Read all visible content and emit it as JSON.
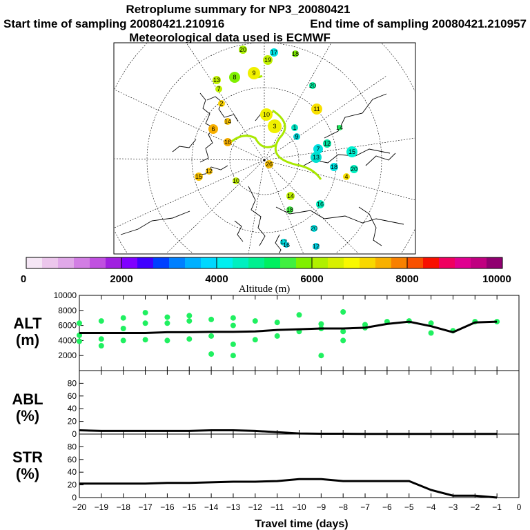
{
  "header": {
    "title": "Retroplume summary for NP3_20080421",
    "start_sampling": "Start time of sampling 20080421.210916",
    "end_sampling": "End time of sampling 20080421.210957",
    "met_data": "Meteorological data used is ECMWF"
  },
  "colorbar": {
    "ticks": [
      "0",
      "2000",
      "4000",
      "6000",
      "8000",
      "10000"
    ],
    "label": "Altitude (m)",
    "colors": [
      "#f5e6f5",
      "#ecc6ec",
      "#e0a8e8",
      "#d27ee4",
      "#c050e0",
      "#a020e0",
      "#8000ff",
      "#4000ff",
      "#0040ff",
      "#0080ff",
      "#00b0ff",
      "#00d8ff",
      "#00f0f0",
      "#00f0c0",
      "#00f090",
      "#00f060",
      "#40f040",
      "#80f000",
      "#b0f000",
      "#d8f000",
      "#f8f800",
      "#f8d800",
      "#f8b000",
      "#f88000",
      "#f85000",
      "#f81000",
      "#f00060",
      "#e00090",
      "#c00080",
      "#900070"
    ]
  },
  "map": {
    "markers": [
      {
        "label": "20",
        "color": "#aaf000"
      },
      {
        "label": "17",
        "color": "#00e0e0"
      },
      {
        "label": "18",
        "color": "#80f000"
      },
      {
        "label": "19",
        "color": "#c0f000"
      },
      {
        "label": "9",
        "color": "#f0f000"
      },
      {
        "label": "8",
        "color": "#80f000"
      },
      {
        "label": "13",
        "color": "#c0f000"
      },
      {
        "label": "7",
        "color": "#c0f000"
      },
      {
        "label": "20",
        "color": "#00f0a0"
      },
      {
        "label": "11",
        "color": "#f8e000"
      },
      {
        "label": "2",
        "color": "#f8d000"
      },
      {
        "label": "6",
        "color": "#f8b000"
      },
      {
        "label": "14",
        "color": "#f8c000"
      },
      {
        "label": "10",
        "color": "#f0f000"
      },
      {
        "label": "3",
        "color": "#f0f000"
      },
      {
        "label": "1",
        "color": "#00e0c0"
      },
      {
        "label": "14",
        "color": "#20f060"
      },
      {
        "label": "16",
        "color": "#f8b000"
      },
      {
        "label": "7",
        "color": "#00e0e0"
      },
      {
        "label": "12",
        "color": "#00e0a0"
      },
      {
        "label": "9",
        "color": "#00d0d0"
      },
      {
        "label": "15",
        "color": "#00f0d0"
      },
      {
        "label": "13",
        "color": "#00e0d0"
      },
      {
        "label": "18",
        "color": "#00e0e0"
      },
      {
        "label": "20",
        "color": "#00f0c0"
      },
      {
        "label": "4",
        "color": "#f8e000"
      },
      {
        "label": "26",
        "color": "#f8c000"
      },
      {
        "label": "15",
        "color": "#f8c000"
      },
      {
        "label": "12",
        "color": "#f8c000"
      },
      {
        "label": "10",
        "color": "#c0f000"
      },
      {
        "label": "14",
        "color": "#c0f000"
      },
      {
        "label": "18",
        "color": "#40f040"
      },
      {
        "label": "16",
        "color": "#00f0c0"
      },
      {
        "label": "20",
        "color": "#00e0e0"
      },
      {
        "label": "17",
        "color": "#00e0e0"
      },
      {
        "label": "16",
        "color": "#00d0e0"
      },
      {
        "label": "12",
        "color": "#00d0e0"
      }
    ]
  },
  "chart_data": [
    {
      "type": "scatter+line",
      "panel": "ALT",
      "ylabel": "ALT (m)",
      "ylim": [
        0,
        10000
      ],
      "yticks": [
        2000,
        4000,
        6000,
        8000,
        10000
      ],
      "xlim": [
        -20,
        0
      ],
      "line": {
        "x": [
          -20,
          -19,
          -18,
          -17,
          -16,
          -15,
          -14,
          -13,
          -12,
          -11,
          -10,
          -9,
          -8,
          -7,
          -6,
          -5,
          -4,
          -3,
          -2,
          -1
        ],
        "y": [
          5000,
          5000,
          5000,
          5000,
          5100,
          5100,
          5150,
          5150,
          5200,
          5400,
          5500,
          5600,
          5600,
          5700,
          6200,
          6500,
          5900,
          5100,
          6400,
          6500
        ]
      },
      "points": [
        {
          "x": -20,
          "y": 6300
        },
        {
          "x": -20,
          "y": 4700
        },
        {
          "x": -20,
          "y": 3900
        },
        {
          "x": -19,
          "y": 6600
        },
        {
          "x": -19,
          "y": 4200
        },
        {
          "x": -19,
          "y": 3300
        },
        {
          "x": -18,
          "y": 7000
        },
        {
          "x": -18,
          "y": 5600
        },
        {
          "x": -18,
          "y": 4000
        },
        {
          "x": -17,
          "y": 7700
        },
        {
          "x": -17,
          "y": 6300
        },
        {
          "x": -17,
          "y": 4100
        },
        {
          "x": -16,
          "y": 7100
        },
        {
          "x": -16,
          "y": 6300
        },
        {
          "x": -16,
          "y": 4000
        },
        {
          "x": -15,
          "y": 7300
        },
        {
          "x": -15,
          "y": 6600
        },
        {
          "x": -15,
          "y": 4200
        },
        {
          "x": -14,
          "y": 6800
        },
        {
          "x": -14,
          "y": 4600
        },
        {
          "x": -14,
          "y": 2200
        },
        {
          "x": -13,
          "y": 7000
        },
        {
          "x": -13,
          "y": 6000
        },
        {
          "x": -13,
          "y": 3500
        },
        {
          "x": -13,
          "y": 2000
        },
        {
          "x": -12,
          "y": 6600
        },
        {
          "x": -12,
          "y": 4100
        },
        {
          "x": -11,
          "y": 6400
        },
        {
          "x": -11,
          "y": 4600
        },
        {
          "x": -10,
          "y": 7400
        },
        {
          "x": -10,
          "y": 5200
        },
        {
          "x": -9,
          "y": 6200
        },
        {
          "x": -9,
          "y": 5600
        },
        {
          "x": -9,
          "y": 2000
        },
        {
          "x": -8,
          "y": 7800
        },
        {
          "x": -8,
          "y": 5200
        },
        {
          "x": -8,
          "y": 4000
        },
        {
          "x": -7,
          "y": 6100
        },
        {
          "x": -7,
          "y": 5700
        },
        {
          "x": -6,
          "y": 6500
        },
        {
          "x": -5,
          "y": 6600
        },
        {
          "x": -4,
          "y": 6300
        },
        {
          "x": -4,
          "y": 5000
        },
        {
          "x": -3,
          "y": 5300
        },
        {
          "x": -2,
          "y": 6500
        },
        {
          "x": -1,
          "y": 6500
        }
      ],
      "point_color": "#20f060"
    },
    {
      "type": "line",
      "panel": "ABL",
      "ylabel": "ABL (%)",
      "ylim": [
        0,
        100
      ],
      "yticks": [
        0,
        20,
        40,
        60,
        80
      ],
      "xlim": [
        -20,
        0
      ],
      "x": [
        -20,
        -19,
        -18,
        -17,
        -16,
        -15,
        -14,
        -13,
        -12,
        -11,
        -10,
        -9,
        -8,
        -7,
        -6,
        -5,
        -4,
        -3,
        -2,
        -1
      ],
      "y": [
        6,
        5,
        5,
        5,
        5,
        5,
        6,
        6,
        5,
        3,
        1,
        0.5,
        0.5,
        0.3,
        0.3,
        0.3,
        0.2,
        0.2,
        0.2,
        0.2
      ]
    },
    {
      "type": "line",
      "panel": "STR",
      "ylabel": "STR (%)",
      "ylim": [
        0,
        100
      ],
      "yticks": [
        0,
        20,
        40,
        60,
        80
      ],
      "xlim": [
        -20,
        0
      ],
      "xlabel": "Travel time (days)",
      "xticks": [
        -20,
        -19,
        -18,
        -17,
        -16,
        -15,
        -14,
        -13,
        -12,
        -11,
        -10,
        -9,
        -8,
        -7,
        -6,
        -5,
        -4,
        -3,
        -2,
        -1,
        0
      ],
      "x": [
        -20,
        -19,
        -18,
        -17,
        -16,
        -15,
        -14,
        -13,
        -12,
        -11,
        -10,
        -9,
        -8,
        -7,
        -6,
        -5,
        -4,
        -3,
        -2,
        -1
      ],
      "y": [
        22,
        22,
        22,
        22,
        23,
        23,
        24,
        25,
        25,
        26,
        29,
        29,
        26,
        26,
        26,
        26,
        12,
        3,
        3,
        0
      ]
    }
  ],
  "panels": {
    "alt_label": "ALT",
    "alt_unit": "(m)",
    "abl_label": "ABL",
    "abl_unit": "(%)",
    "str_label": "STR",
    "str_unit": "(%)"
  }
}
